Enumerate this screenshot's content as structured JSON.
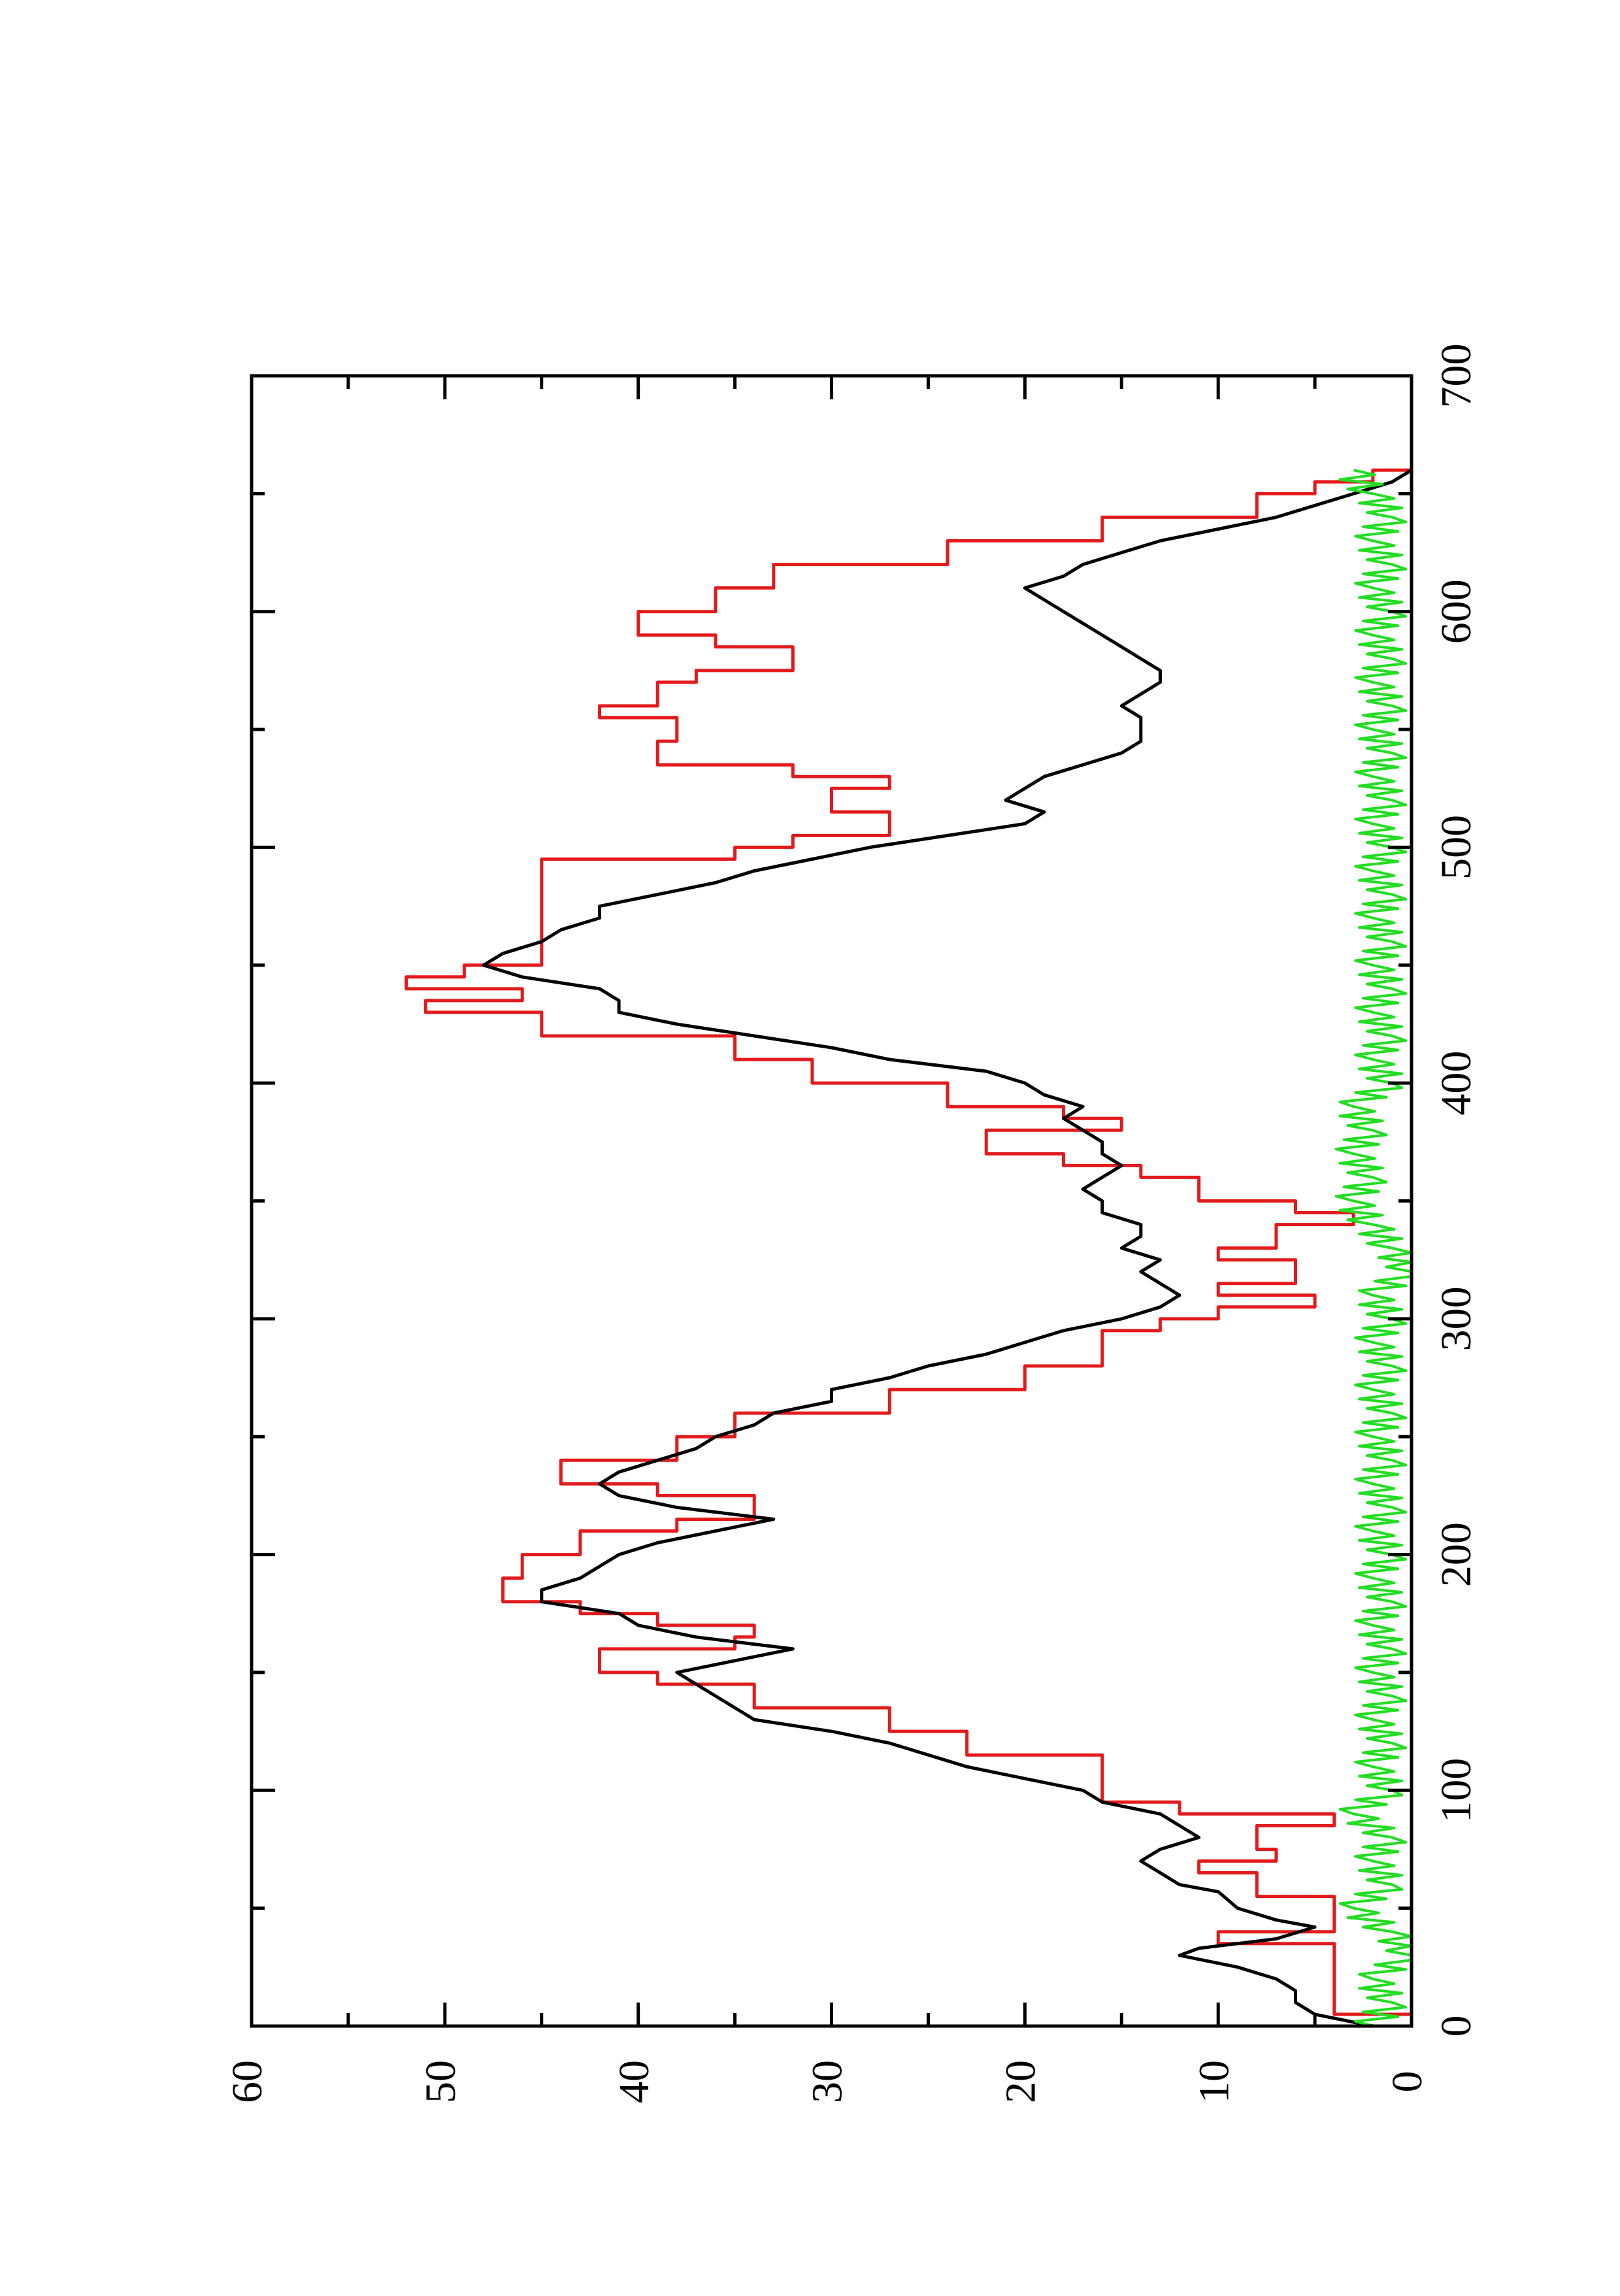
{
  "colors": {
    "background": "#ffffff",
    "axis": "#000000",
    "series_black": "#000000",
    "series_red": "#e31a1c",
    "series_green": "#22dd22"
  },
  "chart_data": {
    "type": "line",
    "orientation": "rotated-90-ccw",
    "title": "",
    "xlabel": "",
    "ylabel": "",
    "xlim": [
      0,
      700
    ],
    "ylim": [
      0,
      60
    ],
    "x_ticks": [
      0,
      100,
      200,
      300,
      400,
      500,
      600,
      700
    ],
    "x_tick_labels": [
      "0",
      "100",
      "200",
      "300",
      "400",
      "500",
      "600",
      "700"
    ],
    "x_minor_ticks": [
      50,
      150,
      250,
      350,
      450,
      550,
      650
    ],
    "y_ticks": [
      0,
      10,
      20,
      30,
      40,
      50,
      60
    ],
    "y_tick_labels": [
      "0",
      "10",
      "20",
      "30",
      "40",
      "50",
      "60"
    ],
    "y_minor_ticks": [
      5,
      15,
      25,
      35,
      45,
      55
    ],
    "grid": false,
    "legend": "none",
    "series": [
      {
        "color": "#e31a1c",
        "interpolation": "step",
        "points": [
          [
            0,
            0
          ],
          [
            5,
            4
          ],
          [
            25,
            4
          ],
          [
            35,
            10
          ],
          [
            40,
            4
          ],
          [
            50,
            4
          ],
          [
            55,
            8
          ],
          [
            65,
            11
          ],
          [
            70,
            7
          ],
          [
            75,
            8
          ],
          [
            85,
            4
          ],
          [
            90,
            12
          ],
          [
            95,
            16
          ],
          [
            105,
            16
          ],
          [
            115,
            23
          ],
          [
            125,
            27
          ],
          [
            135,
            34
          ],
          [
            145,
            39
          ],
          [
            150,
            42
          ],
          [
            160,
            35
          ],
          [
            165,
            34
          ],
          [
            170,
            39
          ],
          [
            175,
            43
          ],
          [
            180,
            47
          ],
          [
            190,
            46
          ],
          [
            200,
            43
          ],
          [
            210,
            38
          ],
          [
            215,
            34
          ],
          [
            225,
            39
          ],
          [
            230,
            44
          ],
          [
            240,
            38
          ],
          [
            250,
            35
          ],
          [
            260,
            27
          ],
          [
            270,
            20
          ],
          [
            280,
            16
          ],
          [
            295,
            13
          ],
          [
            300,
            10
          ],
          [
            305,
            5
          ],
          [
            310,
            10
          ],
          [
            315,
            6
          ],
          [
            320,
            6
          ],
          [
            325,
            10
          ],
          [
            330,
            7
          ],
          [
            340,
            3
          ],
          [
            345,
            6
          ],
          [
            350,
            11
          ],
          [
            360,
            14
          ],
          [
            365,
            18
          ],
          [
            370,
            22
          ],
          [
            380,
            15
          ],
          [
            385,
            18
          ],
          [
            390,
            24
          ],
          [
            400,
            31
          ],
          [
            410,
            35
          ],
          [
            420,
            45
          ],
          [
            430,
            51
          ],
          [
            435,
            46
          ],
          [
            440,
            52
          ],
          [
            445,
            49
          ],
          [
            450,
            45
          ],
          [
            485,
            45
          ],
          [
            495,
            35
          ],
          [
            500,
            32
          ],
          [
            505,
            27
          ],
          [
            515,
            30
          ],
          [
            525,
            27
          ],
          [
            530,
            32
          ],
          [
            535,
            39
          ],
          [
            545,
            38
          ],
          [
            555,
            42
          ],
          [
            560,
            39
          ],
          [
            570,
            37
          ],
          [
            575,
            32
          ],
          [
            585,
            36
          ],
          [
            590,
            40
          ],
          [
            600,
            36
          ],
          [
            610,
            33
          ],
          [
            620,
            24
          ],
          [
            630,
            16
          ],
          [
            640,
            8
          ],
          [
            650,
            5
          ],
          [
            655,
            2
          ],
          [
            660,
            0
          ]
        ]
      },
      {
        "color": "#000000",
        "interpolation": "linear",
        "points": [
          [
            0,
            2
          ],
          [
            5,
            5
          ],
          [
            10,
            6
          ],
          [
            15,
            6
          ],
          [
            20,
            7
          ],
          [
            25,
            9
          ],
          [
            30,
            12
          ],
          [
            33,
            11
          ],
          [
            37,
            7
          ],
          [
            42,
            5
          ],
          [
            45,
            7
          ],
          [
            50,
            9
          ],
          [
            57,
            10
          ],
          [
            60,
            12
          ],
          [
            65,
            13
          ],
          [
            70,
            14
          ],
          [
            75,
            13
          ],
          [
            80,
            11
          ],
          [
            85,
            12
          ],
          [
            90,
            13
          ],
          [
            95,
            16
          ],
          [
            100,
            17
          ],
          [
            105,
            20
          ],
          [
            110,
            23
          ],
          [
            120,
            27
          ],
          [
            125,
            30
          ],
          [
            130,
            34
          ],
          [
            140,
            36
          ],
          [
            145,
            37
          ],
          [
            150,
            38
          ],
          [
            155,
            35
          ],
          [
            160,
            32
          ],
          [
            165,
            37
          ],
          [
            170,
            40
          ],
          [
            175,
            41
          ],
          [
            180,
            45
          ],
          [
            185,
            45
          ],
          [
            190,
            43
          ],
          [
            195,
            42
          ],
          [
            200,
            41
          ],
          [
            205,
            39
          ],
          [
            210,
            36
          ],
          [
            215,
            33
          ],
          [
            220,
            38
          ],
          [
            225,
            41
          ],
          [
            230,
            42
          ],
          [
            235,
            41
          ],
          [
            240,
            39
          ],
          [
            245,
            37
          ],
          [
            250,
            36
          ],
          [
            255,
            34
          ],
          [
            260,
            33
          ],
          [
            265,
            30
          ],
          [
            270,
            30
          ],
          [
            275,
            27
          ],
          [
            280,
            25
          ],
          [
            285,
            22
          ],
          [
            290,
            20
          ],
          [
            295,
            18
          ],
          [
            300,
            15
          ],
          [
            305,
            13
          ],
          [
            310,
            12
          ],
          [
            315,
            13
          ],
          [
            320,
            14
          ],
          [
            325,
            13
          ],
          [
            330,
            15
          ],
          [
            335,
            14
          ],
          [
            340,
            14
          ],
          [
            345,
            16
          ],
          [
            350,
            16
          ],
          [
            355,
            17
          ],
          [
            360,
            16
          ],
          [
            365,
            15
          ],
          [
            370,
            16
          ],
          [
            375,
            16
          ],
          [
            380,
            17
          ],
          [
            385,
            18
          ],
          [
            390,
            17
          ],
          [
            395,
            19
          ],
          [
            400,
            20
          ],
          [
            405,
            22
          ],
          [
            410,
            27
          ],
          [
            415,
            30
          ],
          [
            420,
            34
          ],
          [
            425,
            38
          ],
          [
            430,
            41
          ],
          [
            435,
            41
          ],
          [
            440,
            42
          ],
          [
            445,
            46
          ],
          [
            450,
            48
          ],
          [
            455,
            47
          ],
          [
            460,
            45
          ],
          [
            465,
            44
          ],
          [
            470,
            42
          ],
          [
            475,
            42
          ],
          [
            480,
            39
          ],
          [
            485,
            36
          ],
          [
            490,
            34
          ],
          [
            495,
            31
          ],
          [
            500,
            28
          ],
          [
            505,
            24
          ],
          [
            510,
            20
          ],
          [
            515,
            19
          ],
          [
            520,
            21
          ],
          [
            525,
            20
          ],
          [
            530,
            19
          ],
          [
            535,
            17
          ],
          [
            540,
            15
          ],
          [
            545,
            14
          ],
          [
            550,
            14
          ],
          [
            555,
            14
          ],
          [
            560,
            15
          ],
          [
            565,
            14
          ],
          [
            570,
            13
          ],
          [
            575,
            13
          ],
          [
            580,
            14
          ],
          [
            585,
            15
          ],
          [
            590,
            16
          ],
          [
            595,
            17
          ],
          [
            600,
            18
          ],
          [
            605,
            19
          ],
          [
            610,
            20
          ],
          [
            615,
            18
          ],
          [
            620,
            17
          ],
          [
            625,
            15
          ],
          [
            630,
            13
          ],
          [
            635,
            10
          ],
          [
            640,
            7
          ],
          [
            645,
            5
          ],
          [
            650,
            3
          ],
          [
            655,
            1
          ],
          [
            660,
            0
          ]
        ]
      },
      {
        "color": "#22dd22",
        "interpolation": "linear",
        "noise": true,
        "points": [
          [
            0,
            2
          ],
          [
            10,
            1
          ],
          [
            20,
            2
          ],
          [
            30,
            0
          ],
          [
            40,
            1
          ],
          [
            50,
            3
          ],
          [
            60,
            1
          ],
          [
            70,
            2
          ],
          [
            80,
            1
          ],
          [
            90,
            3
          ],
          [
            100,
            1
          ],
          [
            110,
            2
          ],
          [
            120,
            1
          ],
          [
            130,
            2
          ],
          [
            140,
            1
          ],
          [
            150,
            2
          ],
          [
            160,
            1
          ],
          [
            170,
            2
          ],
          [
            180,
            1
          ],
          [
            190,
            2
          ],
          [
            200,
            1
          ],
          [
            210,
            2
          ],
          [
            220,
            1
          ],
          [
            230,
            2
          ],
          [
            240,
            1
          ],
          [
            250,
            2
          ],
          [
            260,
            1
          ],
          [
            270,
            2
          ],
          [
            280,
            1
          ],
          [
            290,
            2
          ],
          [
            300,
            1
          ],
          [
            310,
            2
          ],
          [
            320,
            0
          ],
          [
            330,
            1
          ],
          [
            340,
            2
          ],
          [
            350,
            3
          ],
          [
            360,
            2
          ],
          [
            370,
            3
          ],
          [
            380,
            2
          ],
          [
            390,
            3
          ],
          [
            400,
            1
          ],
          [
            410,
            2
          ],
          [
            420,
            1
          ],
          [
            430,
            2
          ],
          [
            440,
            1
          ],
          [
            450,
            2
          ],
          [
            460,
            1
          ],
          [
            470,
            2
          ],
          [
            480,
            1
          ],
          [
            490,
            2
          ],
          [
            500,
            1
          ],
          [
            510,
            2
          ],
          [
            520,
            1
          ],
          [
            530,
            2
          ],
          [
            540,
            1
          ],
          [
            550,
            2
          ],
          [
            560,
            1
          ],
          [
            570,
            2
          ],
          [
            580,
            1
          ],
          [
            590,
            2
          ],
          [
            600,
            1
          ],
          [
            610,
            2
          ],
          [
            620,
            1
          ],
          [
            630,
            2
          ],
          [
            640,
            1
          ],
          [
            650,
            2
          ],
          [
            660,
            3
          ]
        ]
      }
    ]
  }
}
